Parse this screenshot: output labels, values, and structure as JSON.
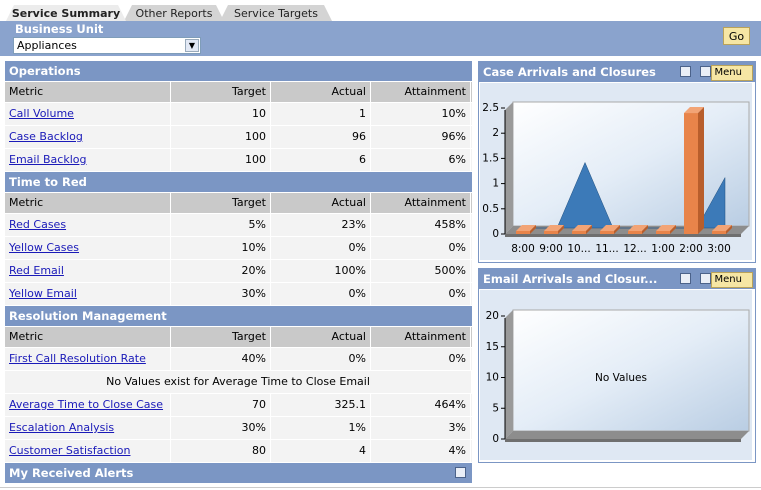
{
  "tabs": [
    "Service Summary",
    "Other Reports",
    "Service Targets"
  ],
  "filter": {
    "label": "Business Unit",
    "value": "Appliances",
    "button": "Go"
  },
  "sections": [
    {
      "title": "Operations",
      "columns": [
        "Metric",
        "Target",
        "Actual",
        "Attainment"
      ],
      "rows": [
        [
          "Call Volume",
          "10",
          "1",
          "10%"
        ],
        [
          "Case Backlog",
          "100",
          "96",
          "96%"
        ],
        [
          "Email Backlog",
          "100",
          "6",
          "6%"
        ]
      ]
    },
    {
      "title": "Time to Red",
      "columns": [
        "Metric",
        "Target",
        "Actual",
        "Attainment"
      ],
      "rows": [
        [
          "Red Cases",
          "5%",
          "23%",
          "458%"
        ],
        [
          "Yellow Cases",
          "10%",
          "0%",
          "0%"
        ],
        [
          "Red Email",
          "20%",
          "100%",
          "500%"
        ],
        [
          "Yellow Email",
          "30%",
          "0%",
          "0%"
        ]
      ]
    },
    {
      "title": "Resolution Management",
      "columns": [
        "Metric",
        "Target",
        "Actual",
        "Attainment"
      ],
      "rows": [
        [
          "First Call Resolution Rate",
          "40%",
          "0%",
          "0%"
        ],
        [
          "No Values exist for Average Time to Close Email"
        ],
        [
          "Average Time to Close Case",
          "70",
          "325.1",
          "464%"
        ],
        [
          "Escalation Analysis",
          "30%",
          "1%",
          "3%"
        ],
        [
          "Customer Satisfaction",
          "80",
          "4",
          "4%"
        ]
      ]
    }
  ],
  "alerts_title": "My Received Alerts",
  "panels": [
    {
      "title": "Case Arrivals and Closures",
      "menu": "Menu",
      "chart_data": {
        "type": "bar",
        "categories": [
          "8:00",
          "9:00",
          "10...",
          "11...",
          "12...",
          "1:00",
          "2:00",
          "3:00"
        ],
        "series": [
          {
            "color": "#3c7ab8",
            "values": [
              0,
              0,
              1.3,
              0,
              0,
              0,
              0,
              1.0
            ]
          },
          {
            "color": "#e8844a",
            "values": [
              0,
              0,
              0,
              0,
              0,
              0,
              2.4,
              0
            ]
          }
        ],
        "ylim": [
          0,
          2.5
        ],
        "yticks": [
          0,
          0.5,
          1,
          1.5,
          2,
          2.5
        ]
      }
    },
    {
      "title": "Email Arrivals and Closur...",
      "menu": "Menu",
      "chart_data": {
        "type": "bar",
        "message": "No Values",
        "ylim": [
          0,
          20
        ],
        "yticks": [
          0,
          5,
          10,
          15,
          20
        ]
      }
    }
  ]
}
